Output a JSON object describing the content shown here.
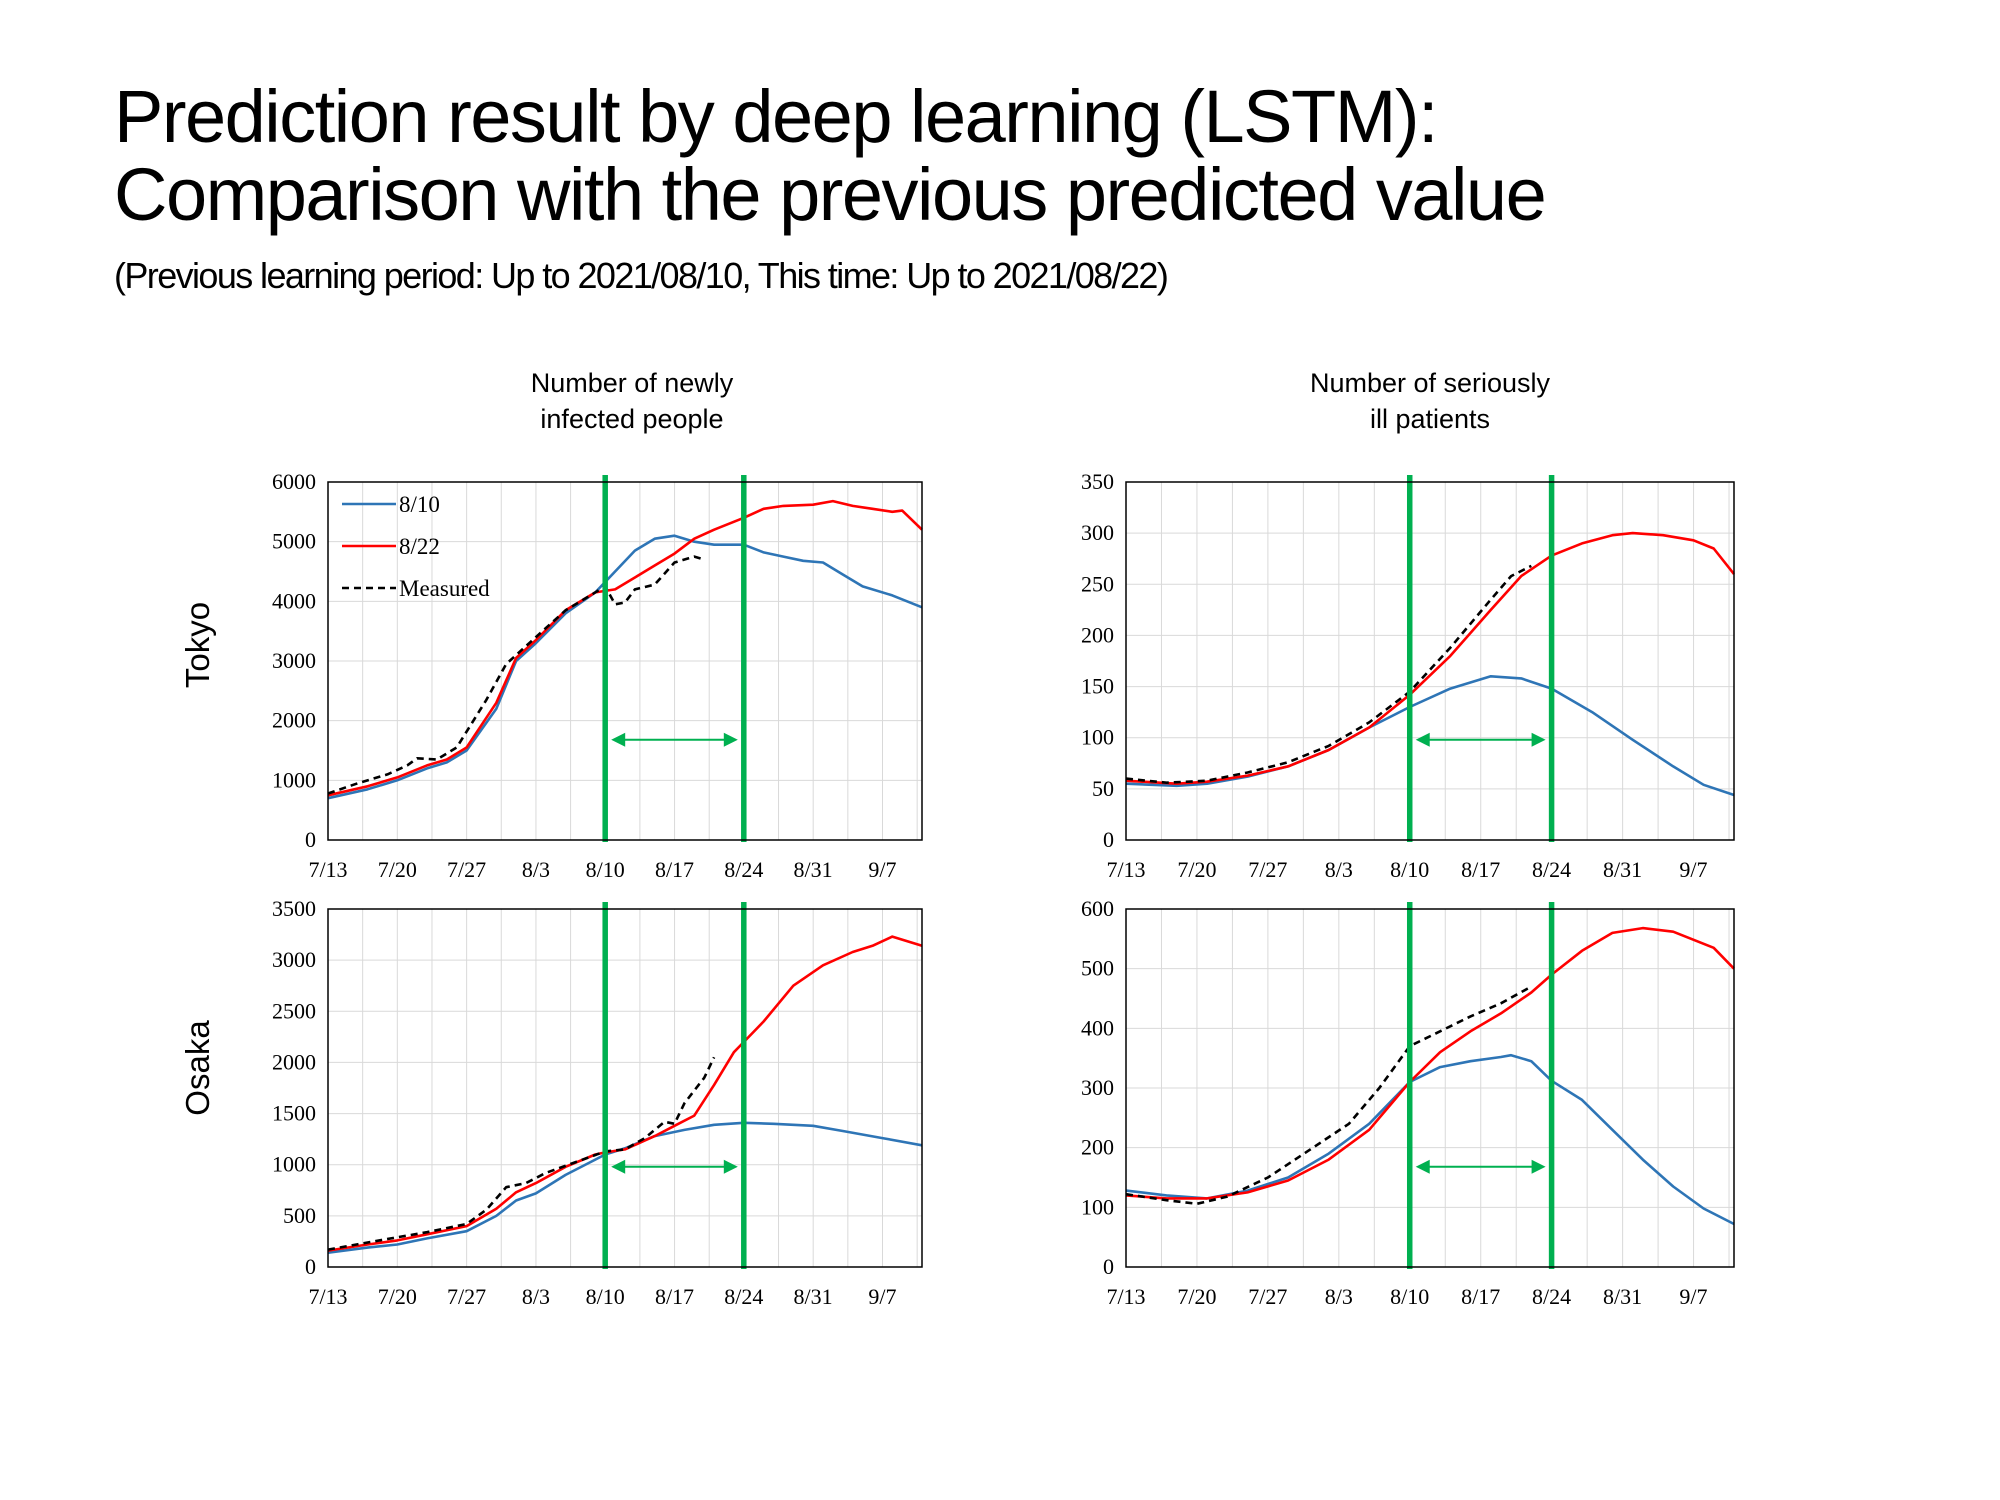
{
  "header": {
    "title_line1": "Prediction result by deep learning (LSTM):",
    "title_line2": "Comparison with the previous predicted value",
    "subtitle": "(Previous learning period: Up to 2021/08/10, This time: Up to 2021/08/22)"
  },
  "columns": {
    "left_line1": "Number of newly",
    "left_line2": "infected people",
    "right_line1": "Number of seriously",
    "right_line2": "ill patients"
  },
  "rows": {
    "top": "Tokyo",
    "bottom": "Osaka"
  },
  "colors": {
    "s810": "#2e75b6",
    "s822": "#ff0000",
    "measured": "#000000",
    "marker": "#00b050",
    "grid": "#d9d9d9"
  },
  "chart_data": [
    {
      "id": "tokyo-infected",
      "type": "line",
      "xticks": [
        "7/13",
        "7/20",
        "7/27",
        "8/3",
        "8/10",
        "8/17",
        "8/24",
        "8/31",
        "9/7"
      ],
      "xlim": [
        0,
        60
      ],
      "ylim": [
        0,
        6000
      ],
      "yticks": [
        "0",
        "1000",
        "2000",
        "3000",
        "4000",
        "5000",
        "6000"
      ],
      "markers": [
        28,
        42
      ],
      "legend": [
        "8/10",
        "8/22",
        "Measured"
      ],
      "series": [
        {
          "name": "8/10",
          "key": "s810",
          "points": [
            [
              0,
              700
            ],
            [
              4,
              850
            ],
            [
              7,
              1000
            ],
            [
              10,
              1200
            ],
            [
              12,
              1300
            ],
            [
              14,
              1500
            ],
            [
              17,
              2200
            ],
            [
              19,
              3000
            ],
            [
              21,
              3300
            ],
            [
              24,
              3800
            ],
            [
              27,
              4150
            ],
            [
              29,
              4500
            ],
            [
              31,
              4850
            ],
            [
              33,
              5050
            ],
            [
              35,
              5100
            ],
            [
              37,
              5000
            ],
            [
              39,
              4950
            ],
            [
              42,
              4950
            ],
            [
              44,
              4820
            ],
            [
              46,
              4750
            ],
            [
              48,
              4680
            ],
            [
              50,
              4650
            ],
            [
              52,
              4450
            ],
            [
              54,
              4250
            ],
            [
              57,
              4100
            ],
            [
              60,
              3900
            ]
          ]
        },
        {
          "name": "8/22",
          "key": "s822",
          "points": [
            [
              0,
              750
            ],
            [
              4,
              900
            ],
            [
              7,
              1050
            ],
            [
              10,
              1250
            ],
            [
              12,
              1350
            ],
            [
              14,
              1550
            ],
            [
              17,
              2300
            ],
            [
              19,
              3050
            ],
            [
              21,
              3350
            ],
            [
              24,
              3850
            ],
            [
              27,
              4150
            ],
            [
              29,
              4200
            ],
            [
              31,
              4400
            ],
            [
              33,
              4600
            ],
            [
              35,
              4800
            ],
            [
              37,
              5050
            ],
            [
              39,
              5200
            ],
            [
              42,
              5400
            ],
            [
              44,
              5550
            ],
            [
              46,
              5600
            ],
            [
              49,
              5620
            ],
            [
              51,
              5680
            ],
            [
              53,
              5600
            ],
            [
              55,
              5550
            ],
            [
              57,
              5500
            ],
            [
              58,
              5520
            ],
            [
              60,
              5200
            ]
          ]
        },
        {
          "name": "Measured",
          "key": "measured",
          "dashed": true,
          "points": [
            [
              0,
              780
            ],
            [
              3,
              950
            ],
            [
              6,
              1100
            ],
            [
              8,
              1250
            ],
            [
              9,
              1370
            ],
            [
              11,
              1350
            ],
            [
              13,
              1550
            ],
            [
              16,
              2350
            ],
            [
              18,
              2950
            ],
            [
              21,
              3400
            ],
            [
              24,
              3850
            ],
            [
              26,
              4050
            ],
            [
              28,
              4250
            ],
            [
              29,
              3950
            ],
            [
              30,
              3980
            ],
            [
              31,
              4200
            ],
            [
              33,
              4280
            ],
            [
              35,
              4650
            ],
            [
              37,
              4750
            ],
            [
              38,
              4700
            ]
          ]
        }
      ]
    },
    {
      "id": "tokyo-serious",
      "type": "line",
      "xticks": [
        "7/13",
        "7/20",
        "7/27",
        "8/3",
        "8/10",
        "8/17",
        "8/24",
        "8/31",
        "9/7"
      ],
      "xlim": [
        0,
        60
      ],
      "ylim": [
        0,
        350
      ],
      "yticks": [
        "0",
        "50",
        "100",
        "150",
        "200",
        "250",
        "300",
        "350"
      ],
      "markers": [
        28,
        42
      ],
      "series": [
        {
          "name": "8/10",
          "key": "s810",
          "points": [
            [
              0,
              55
            ],
            [
              5,
              53
            ],
            [
              8,
              55
            ],
            [
              12,
              62
            ],
            [
              16,
              72
            ],
            [
              20,
              88
            ],
            [
              24,
              110
            ],
            [
              28,
              130
            ],
            [
              32,
              148
            ],
            [
              36,
              160
            ],
            [
              39,
              158
            ],
            [
              42,
              148
            ],
            [
              46,
              125
            ],
            [
              50,
              98
            ],
            [
              54,
              72
            ],
            [
              57,
              54
            ],
            [
              60,
              44
            ]
          ]
        },
        {
          "name": "8/22",
          "key": "s822",
          "points": [
            [
              0,
              58
            ],
            [
              5,
              55
            ],
            [
              8,
              57
            ],
            [
              12,
              63
            ],
            [
              16,
              72
            ],
            [
              20,
              88
            ],
            [
              24,
              110
            ],
            [
              28,
              142
            ],
            [
              32,
              180
            ],
            [
              36,
              225
            ],
            [
              39,
              258
            ],
            [
              42,
              278
            ],
            [
              45,
              290
            ],
            [
              48,
              298
            ],
            [
              50,
              300
            ],
            [
              53,
              298
            ],
            [
              56,
              293
            ],
            [
              58,
              285
            ],
            [
              60,
              260
            ]
          ]
        },
        {
          "name": "Measured",
          "key": "measured",
          "dashed": true,
          "points": [
            [
              0,
              60
            ],
            [
              4,
              56
            ],
            [
              8,
              58
            ],
            [
              12,
              66
            ],
            [
              16,
              76
            ],
            [
              20,
              92
            ],
            [
              24,
              115
            ],
            [
              28,
              145
            ],
            [
              32,
              188
            ],
            [
              36,
              235
            ],
            [
              38,
              258
            ],
            [
              40,
              268
            ]
          ]
        }
      ]
    },
    {
      "id": "osaka-infected",
      "type": "line",
      "xticks": [
        "7/13",
        "7/20",
        "7/27",
        "8/3",
        "8/10",
        "8/17",
        "8/24",
        "8/31",
        "9/7"
      ],
      "xlim": [
        0,
        60
      ],
      "ylim": [
        0,
        3500
      ],
      "yticks": [
        "0",
        "500",
        "1000",
        "1500",
        "2000",
        "2500",
        "3000",
        "3500"
      ],
      "markers": [
        28,
        42
      ],
      "series": [
        {
          "name": "8/10",
          "key": "s810",
          "points": [
            [
              0,
              140
            ],
            [
              4,
              190
            ],
            [
              7,
              220
            ],
            [
              10,
              280
            ],
            [
              14,
              350
            ],
            [
              17,
              500
            ],
            [
              19,
              650
            ],
            [
              21,
              720
            ],
            [
              24,
              900
            ],
            [
              27,
              1050
            ],
            [
              28,
              1100
            ],
            [
              30,
              1160
            ],
            [
              33,
              1280
            ],
            [
              36,
              1340
            ],
            [
              39,
              1390
            ],
            [
              42,
              1410
            ],
            [
              45,
              1400
            ],
            [
              49,
              1380
            ],
            [
              52,
              1330
            ],
            [
              56,
              1260
            ],
            [
              60,
              1190
            ]
          ]
        },
        {
          "name": "8/22",
          "key": "s822",
          "points": [
            [
              0,
              160
            ],
            [
              4,
              220
            ],
            [
              7,
              260
            ],
            [
              10,
              320
            ],
            [
              14,
              400
            ],
            [
              17,
              570
            ],
            [
              19,
              730
            ],
            [
              21,
              820
            ],
            [
              24,
              980
            ],
            [
              27,
              1100
            ],
            [
              28,
              1120
            ],
            [
              30,
              1150
            ],
            [
              33,
              1280
            ],
            [
              35,
              1380
            ],
            [
              37,
              1480
            ],
            [
              39,
              1780
            ],
            [
              41,
              2100
            ],
            [
              42,
              2200
            ],
            [
              44,
              2400
            ],
            [
              47,
              2750
            ],
            [
              50,
              2950
            ],
            [
              53,
              3080
            ],
            [
              55,
              3140
            ],
            [
              57,
              3230
            ],
            [
              60,
              3140
            ]
          ]
        },
        {
          "name": "Measured",
          "key": "measured",
          "dashed": true,
          "points": [
            [
              0,
              170
            ],
            [
              4,
              240
            ],
            [
              7,
              290
            ],
            [
              10,
              340
            ],
            [
              14,
              420
            ],
            [
              16,
              560
            ],
            [
              18,
              780
            ],
            [
              20,
              820
            ],
            [
              22,
              920
            ],
            [
              26,
              1060
            ],
            [
              28,
              1130
            ],
            [
              30,
              1150
            ],
            [
              32,
              1260
            ],
            [
              34,
              1420
            ],
            [
              35,
              1400
            ],
            [
              36,
              1600
            ],
            [
              38,
              1850
            ],
            [
              39,
              2050
            ]
          ]
        }
      ]
    },
    {
      "id": "osaka-serious",
      "type": "line",
      "xticks": [
        "7/13",
        "7/20",
        "7/27",
        "8/3",
        "8/10",
        "8/17",
        "8/24",
        "8/31",
        "9/7"
      ],
      "xlim": [
        0,
        60
      ],
      "ylim": [
        0,
        600
      ],
      "yticks": [
        "0",
        "100",
        "200",
        "300",
        "400",
        "500",
        "600"
      ],
      "markers": [
        28,
        42
      ],
      "series": [
        {
          "name": "8/10",
          "key": "s810",
          "points": [
            [
              0,
              128
            ],
            [
              4,
              120
            ],
            [
              8,
              115
            ],
            [
              12,
              128
            ],
            [
              16,
              150
            ],
            [
              20,
              190
            ],
            [
              24,
              240
            ],
            [
              28,
              310
            ],
            [
              31,
              335
            ],
            [
              34,
              345
            ],
            [
              37,
              352
            ],
            [
              38,
              355
            ],
            [
              40,
              345
            ],
            [
              42,
              312
            ],
            [
              45,
              280
            ],
            [
              48,
              230
            ],
            [
              51,
              180
            ],
            [
              54,
              135
            ],
            [
              57,
              98
            ],
            [
              60,
              72
            ]
          ]
        },
        {
          "name": "8/22",
          "key": "s822",
          "points": [
            [
              0,
              120
            ],
            [
              4,
              115
            ],
            [
              8,
              115
            ],
            [
              12,
              125
            ],
            [
              16,
              145
            ],
            [
              20,
              180
            ],
            [
              24,
              230
            ],
            [
              28,
              310
            ],
            [
              31,
              360
            ],
            [
              34,
              395
            ],
            [
              37,
              425
            ],
            [
              40,
              460
            ],
            [
              42,
              490
            ],
            [
              45,
              530
            ],
            [
              48,
              560
            ],
            [
              51,
              568
            ],
            [
              54,
              562
            ],
            [
              58,
              535
            ],
            [
              60,
              500
            ]
          ]
        },
        {
          "name": "Measured",
          "key": "measured",
          "dashed": true,
          "points": [
            [
              0,
              122
            ],
            [
              4,
              112
            ],
            [
              7,
              106
            ],
            [
              10,
              118
            ],
            [
              14,
              150
            ],
            [
              18,
              195
            ],
            [
              22,
              240
            ],
            [
              25,
              300
            ],
            [
              28,
              370
            ],
            [
              31,
              395
            ],
            [
              34,
              420
            ],
            [
              37,
              442
            ],
            [
              40,
              470
            ]
          ]
        }
      ]
    }
  ]
}
